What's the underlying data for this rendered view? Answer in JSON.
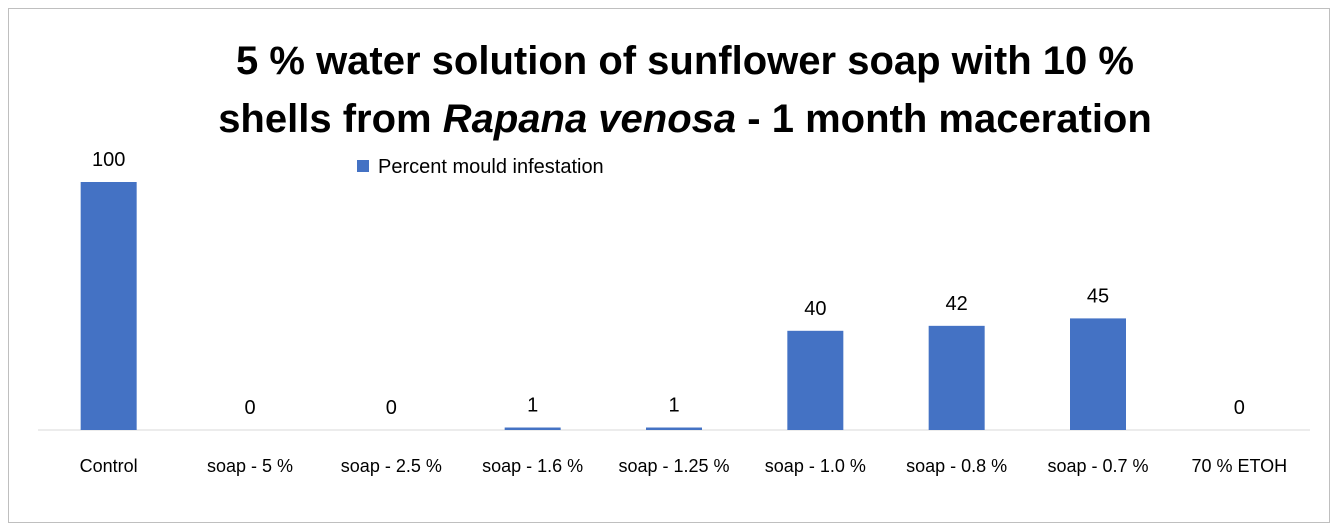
{
  "chart_data": {
    "type": "bar",
    "title": [
      [
        {
          "text": "5 % water solution of sunflower soap with 10 %",
          "italic": false
        }
      ],
      [
        {
          "text": "shells from ",
          "italic": false
        },
        {
          "text": "Rapana venosa",
          "italic": true
        },
        {
          "text": " - 1 month maceration",
          "italic": false
        }
      ]
    ],
    "categories": [
      "Control",
      "soap - 5 %",
      "soap - 2.5 %",
      "soap - 1.6 %",
      "soap - 1.25 %",
      "soap - 1.0 %",
      "soap - 0.8 %",
      "soap - 0.7 %",
      "70 % ETOH"
    ],
    "series": [
      {
        "name": "Percent mould infestation",
        "color": "#4472c4",
        "values": [
          100,
          0,
          0,
          1,
          1,
          40,
          42,
          45,
          0
        ]
      }
    ],
    "ylim": [
      0,
      100
    ],
    "legend": "top"
  }
}
